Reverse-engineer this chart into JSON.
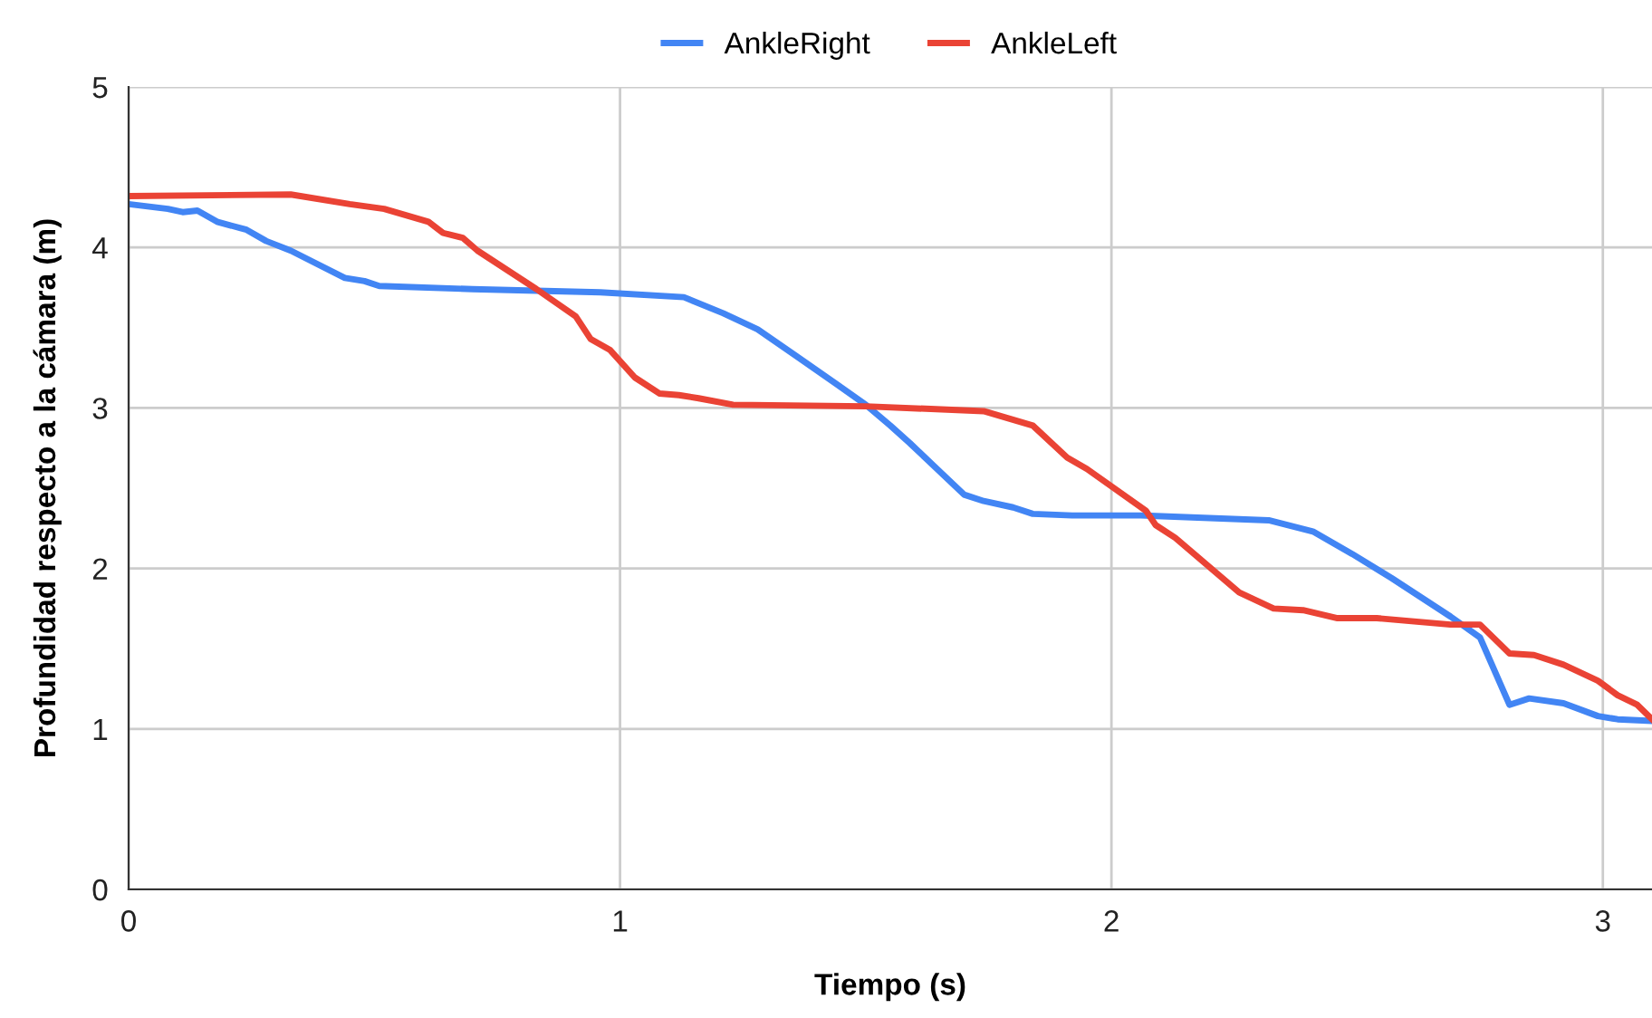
{
  "chart_data": {
    "type": "line",
    "xlabel": "Tiempo (s)",
    "ylabel": "Profundidad respecto a la cámara (m)",
    "xlim": [
      0,
      3.1
    ],
    "xticks": [
      0,
      1,
      2,
      3
    ],
    "ylim": [
      0,
      5
    ],
    "yticks": [
      0,
      1,
      2,
      3,
      4,
      5
    ],
    "grid": true,
    "legend": "top",
    "series": [
      {
        "name": "AnkleRight",
        "color": "#4285f4",
        "x": [
          0,
          0.08,
          0.11,
          0.14,
          0.18,
          0.24,
          0.28,
          0.33,
          0.44,
          0.48,
          0.51,
          0.7,
          0.96,
          1.13,
          1.21,
          1.28,
          1.36,
          1.44,
          1.5,
          1.55,
          1.59,
          1.7,
          1.74,
          1.8,
          1.84,
          1.92,
          2.06,
          2.32,
          2.41,
          2.49,
          2.57,
          2.63,
          2.69,
          2.75,
          2.81,
          2.85,
          2.92,
          2.99,
          3.03,
          3.1
        ],
        "values": [
          4.27,
          4.24,
          4.22,
          4.23,
          4.16,
          4.11,
          4.04,
          3.98,
          3.81,
          3.79,
          3.76,
          3.74,
          3.72,
          3.69,
          3.59,
          3.49,
          3.32,
          3.15,
          3.02,
          2.89,
          2.78,
          2.46,
          2.42,
          2.38,
          2.34,
          2.33,
          2.33,
          2.3,
          2.23,
          2.09,
          1.94,
          1.82,
          1.7,
          1.57,
          1.15,
          1.19,
          1.16,
          1.08,
          1.06,
          1.05
        ]
      },
      {
        "name": "AnkleLeft",
        "color": "#ea4335",
        "x": [
          0,
          0.33,
          0.45,
          0.52,
          0.61,
          0.64,
          0.68,
          0.71,
          0.77,
          0.83,
          0.91,
          0.94,
          0.98,
          1.03,
          1.08,
          1.12,
          1.16,
          1.23,
          1.5,
          1.74,
          1.84,
          1.91,
          1.95,
          2.07,
          2.09,
          2.13,
          2.26,
          2.33,
          2.39,
          2.46,
          2.54,
          2.69,
          2.75,
          2.81,
          2.86,
          2.92,
          2.99,
          3.03,
          3.07,
          3.1
        ],
        "values": [
          4.32,
          4.33,
          4.27,
          4.24,
          4.16,
          4.09,
          4.06,
          3.98,
          3.86,
          3.74,
          3.57,
          3.43,
          3.36,
          3.19,
          3.09,
          3.08,
          3.06,
          3.02,
          3.01,
          2.98,
          2.89,
          2.69,
          2.62,
          2.36,
          2.27,
          2.19,
          1.85,
          1.75,
          1.74,
          1.69,
          1.69,
          1.65,
          1.65,
          1.47,
          1.46,
          1.4,
          1.3,
          1.21,
          1.15,
          1.06
        ]
      }
    ]
  }
}
